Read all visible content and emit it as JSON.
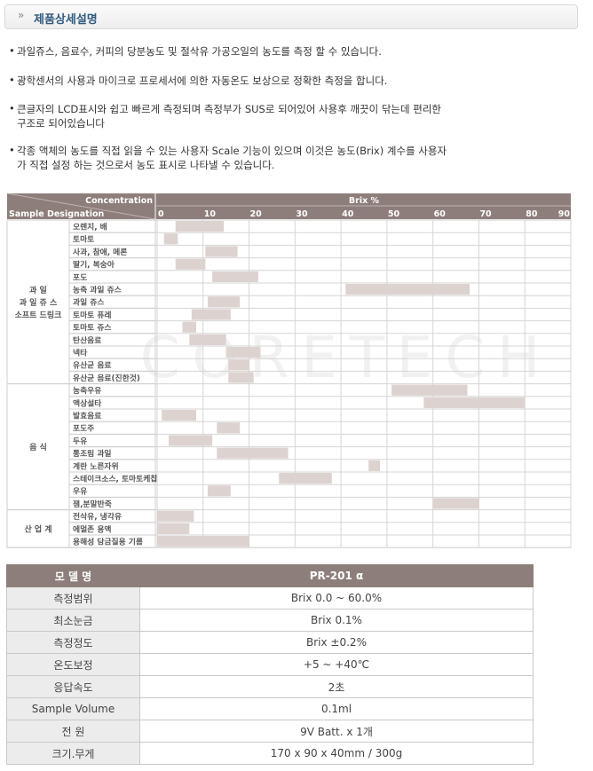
{
  "header": {
    "icon": "»",
    "title": "제품상세설명"
  },
  "bullets": [
    [
      "과일쥬스, 음료수, 커피의 당분농도 및 절삭유 가공오일의 농도를 측정 할 수 있습니다."
    ],
    [
      "광학센서의 사용과 마이크로 프로세서에 의한 자동온도 보상으로 정확한 측정을 합니다."
    ],
    [
      "큰글자의 LCD표시와 쉽고 빠르게 측정되며 측정부가 SUS로 되어있어 사용후 깨끗이 닦는데 편리한",
      "구조로 되어있습니다"
    ],
    [
      "각종 액체의 농도를 직접 읽을 수 있는 사용자 Scale 기능이 있으며 이것은 농도(Brix) 계수를 사용자",
      "가 직접 설정 하는 것으로서 농도 표시로 나타낼 수 있습니다."
    ]
  ],
  "bullet_mark": "•",
  "chart_data": {
    "type": "range-bar",
    "corner_top": "Concentration",
    "corner_bottom": "Sample Designation",
    "x_label": "Brix %",
    "xlim": [
      0,
      90
    ],
    "xticks": [
      0,
      10,
      20,
      30,
      40,
      50,
      60,
      70,
      80,
      90
    ],
    "grid": true,
    "color": "#dcd3d0",
    "watermark": "CORETECH",
    "groups": [
      {
        "name": [
          "과 일",
          "과 일 쥬 스",
          "소프트 드링크"
        ],
        "rows": [
          {
            "label": "오렌지, 배",
            "range": [
              4,
              14.5
            ]
          },
          {
            "label": "토마토",
            "range": [
              1.5,
              4.5
            ]
          },
          {
            "label": "사과, 참애, 메론",
            "range": [
              10.5,
              17.5
            ]
          },
          {
            "label": "딸기, 복숭아",
            "range": [
              4,
              10.5
            ]
          },
          {
            "label": "포도",
            "range": [
              12,
              22
            ]
          },
          {
            "label": "농축 과일 쥬스",
            "range": [
              41,
              68
            ]
          },
          {
            "label": "과일 쥬스",
            "range": [
              11,
              18
            ]
          },
          {
            "label": "토마토 퓨레",
            "range": [
              7.5,
              16
            ]
          },
          {
            "label": "토마토 쥬스",
            "range": [
              5.5,
              8.5
            ]
          },
          {
            "label": "탄산음료",
            "range": [
              7,
              15
            ]
          },
          {
            "label": "넥타",
            "range": [
              15,
              22.5
            ]
          },
          {
            "label": "유산균 음료",
            "range": [
              15.5,
              20
            ]
          },
          {
            "label": "유산균 음료(진한것)",
            "range": [
              15.5,
              21
            ]
          }
        ]
      },
      {
        "name": [
          "음 식"
        ],
        "rows": [
          {
            "label": "농축우유",
            "range": [
              51,
              67.5
            ]
          },
          {
            "label": "액상설타",
            "range": [
              58,
              80
            ]
          },
          {
            "label": "발효음료",
            "range": [
              1,
              8.5
            ]
          },
          {
            "label": "포도주",
            "range": [
              13,
              18
            ]
          },
          {
            "label": "두유",
            "range": [
              2.5,
              12
            ]
          },
          {
            "label": "통조림 과일",
            "range": [
              13,
              28.5
            ]
          },
          {
            "label": "계란 노른자위",
            "range": [
              46,
              48.5
            ]
          },
          {
            "label": "스테이크소스, 토마토케찹",
            "range": [
              26.5,
              38
            ]
          },
          {
            "label": "우유",
            "range": [
              11,
              16
            ]
          },
          {
            "label": "잼,분말반죽",
            "range": [
              60,
              70
            ]
          }
        ]
      },
      {
        "name": [
          "산 업 계"
        ],
        "rows": [
          {
            "label": "전삭유, 냉각유",
            "range": [
              0,
              8
            ]
          },
          {
            "label": "에멀존 용액",
            "range": [
              0,
              7
            ]
          },
          {
            "label": "용해성 담금질용 기름",
            "range": [
              0,
              20
            ]
          }
        ]
      }
    ]
  },
  "specs": {
    "header": [
      "모 델 명",
      "PR-201 α"
    ],
    "rows": [
      [
        "측정범위",
        "Brix 0.0 ~ 60.0%"
      ],
      [
        "최소눈금",
        "Brix 0.1%"
      ],
      [
        "측정정도",
        "Brix ±0.2%"
      ],
      [
        "온도보정",
        "+5 ~ +40℃"
      ],
      [
        "응답속도",
        "2초"
      ],
      [
        "Sample Volume",
        "0.1ml"
      ],
      [
        "전 원",
        "9V Batt. x 1개"
      ],
      [
        "크기.무게",
        "170 x 90 x 40mm / 300g"
      ]
    ]
  }
}
